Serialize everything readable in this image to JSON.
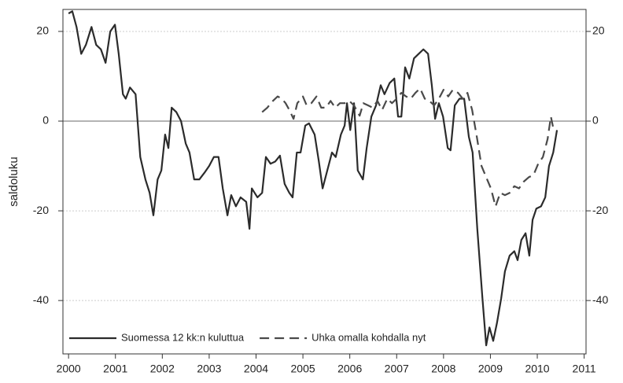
{
  "chart_data": {
    "type": "line",
    "y_label": "saldoluku",
    "xlim": [
      1999.88,
      2011.04
    ],
    "xticks": [
      2000,
      2001,
      2002,
      2003,
      2004,
      2005,
      2006,
      2007,
      2008,
      2009,
      2010,
      2011
    ],
    "ylim": [
      -51.9,
      24.9
    ],
    "yticks": [
      -40,
      -20,
      0,
      20
    ],
    "y2lim": [
      -51.9,
      24.9
    ],
    "y2ticks": [
      -40,
      -20,
      0,
      20
    ],
    "grid": true,
    "legend": "lower left",
    "series": [
      {
        "name": "Suomessa 12 kk:n kuluttua",
        "color": "#2b2b2b",
        "style": "solid",
        "x": [
          2000.0,
          2000.08,
          2000.17,
          2000.27,
          2000.37,
          2000.49,
          2000.59,
          2000.69,
          2000.79,
          2000.89,
          2000.99,
          2001.07,
          2001.16,
          2001.22,
          2001.31,
          2001.43,
          2001.53,
          2001.64,
          2001.73,
          2001.81,
          2001.9,
          2001.98,
          2002.06,
          2002.13,
          2002.2,
          2002.3,
          2002.4,
          2002.5,
          2002.58,
          2002.68,
          2002.79,
          2002.9,
          2003.0,
          2003.1,
          2003.2,
          2003.29,
          2003.39,
          2003.47,
          2003.57,
          2003.67,
          2003.79,
          2003.86,
          2003.91,
          2004.03,
          2004.13,
          2004.21,
          2004.31,
          2004.41,
          2004.51,
          2004.61,
          2004.71,
          2004.78,
          2004.87,
          2004.95,
          2005.05,
          2005.13,
          2005.25,
          2005.34,
          2005.42,
          2005.52,
          2005.62,
          2005.7,
          2005.81,
          2005.89,
          2005.94,
          2006.01,
          2006.09,
          2006.17,
          2006.28,
          2006.36,
          2006.46,
          2006.56,
          2006.66,
          2006.74,
          2006.85,
          2006.95,
          2007.03,
          2007.1,
          2007.18,
          2007.27,
          2007.37,
          2007.47,
          2007.57,
          2007.67,
          2007.75,
          2007.82,
          2007.9,
          2007.99,
          2008.09,
          2008.15,
          2008.24,
          2008.34,
          2008.44,
          2008.54,
          2008.62,
          2008.72,
          2008.83,
          2008.91,
          2008.98,
          2009.06,
          2009.14,
          2009.23,
          2009.31,
          2009.41,
          2009.51,
          2009.58,
          2009.66,
          2009.75,
          2009.83,
          2009.9,
          2009.98,
          2010.08,
          2010.17,
          2010.25,
          2010.34,
          2010.42
        ],
        "values": [
          24,
          24.5,
          21,
          15,
          17,
          21,
          17,
          16,
          13,
          20,
          21.5,
          15,
          6,
          5,
          7.5,
          6,
          -8,
          -13,
          -16,
          -21,
          -13,
          -11,
          -3,
          -6,
          3,
          2,
          0,
          -5,
          -7,
          -13,
          -13,
          -11.5,
          -10,
          -8,
          -8,
          -15,
          -21,
          -16.5,
          -19,
          -17,
          -18,
          -24,
          -15,
          -17,
          -16,
          -8,
          -9.5,
          -9,
          -7.7,
          -14,
          -16,
          -17,
          -7,
          -7,
          -1,
          -0.5,
          -3,
          -9,
          -15,
          -11,
          -7,
          -8,
          -3,
          -1,
          4,
          -2,
          4,
          -11,
          -13,
          -6,
          1,
          3.5,
          8,
          6,
          8.5,
          9.5,
          1,
          1,
          12,
          9.5,
          14,
          15,
          16,
          15,
          8,
          0.5,
          4,
          1,
          -6,
          -6.5,
          3.5,
          5,
          5,
          -3.5,
          -7,
          -24,
          -39.5,
          -50,
          -46,
          -49,
          -45,
          -39.5,
          -33.5,
          -30,
          -29,
          -31,
          -26.5,
          -25,
          -30,
          -22,
          -19.5,
          -19,
          -17,
          -10,
          -7,
          -2
        ]
      },
      {
        "name": "Uhka omalla kohdalla nyt",
        "color": "#4a4a4a",
        "style": "dashed",
        "x": [
          2004.13,
          2004.24,
          2004.36,
          2004.46,
          2004.55,
          2004.63,
          2004.71,
          2004.8,
          2004.88,
          2005.0,
          2005.08,
          2005.18,
          2005.29,
          2005.39,
          2005.49,
          2005.59,
          2005.69,
          2005.79,
          2005.89,
          2005.99,
          2006.09,
          2006.21,
          2006.29,
          2006.39,
          2006.49,
          2006.59,
          2006.69,
          2006.8,
          2006.9,
          2007.0,
          2007.1,
          2007.2,
          2007.3,
          2007.4,
          2007.5,
          2007.6,
          2007.7,
          2007.8,
          2007.9,
          2008.0,
          2008.1,
          2008.2,
          2008.31,
          2008.41,
          2008.51,
          2008.61,
          2008.71,
          2008.81,
          2008.91,
          2009.01,
          2009.11,
          2009.21,
          2009.31,
          2009.41,
          2009.51,
          2009.61,
          2009.71,
          2009.82,
          2009.92,
          2010.02,
          2010.12,
          2010.22,
          2010.29,
          2010.35
        ],
        "values": [
          2,
          3,
          4.5,
          5.5,
          5,
          4,
          2.5,
          0.5,
          4,
          5.5,
          3.5,
          4,
          5.5,
          3,
          3,
          4.5,
          3,
          4,
          4,
          4.5,
          3.5,
          1.2,
          4,
          3.5,
          3,
          4.5,
          2.5,
          5,
          4,
          5,
          6.3,
          5.5,
          5,
          6.3,
          7.3,
          5,
          4.5,
          3.5,
          5,
          7,
          5.5,
          7,
          6.3,
          5,
          6.3,
          2.5,
          -3.5,
          -10,
          -12.5,
          -15,
          -19,
          -16,
          -16.5,
          -16,
          -14.5,
          -15,
          -13.5,
          -12.5,
          -12,
          -9.5,
          -8,
          -4,
          1,
          -2
        ],
        "axis": "y"
      }
    ]
  }
}
